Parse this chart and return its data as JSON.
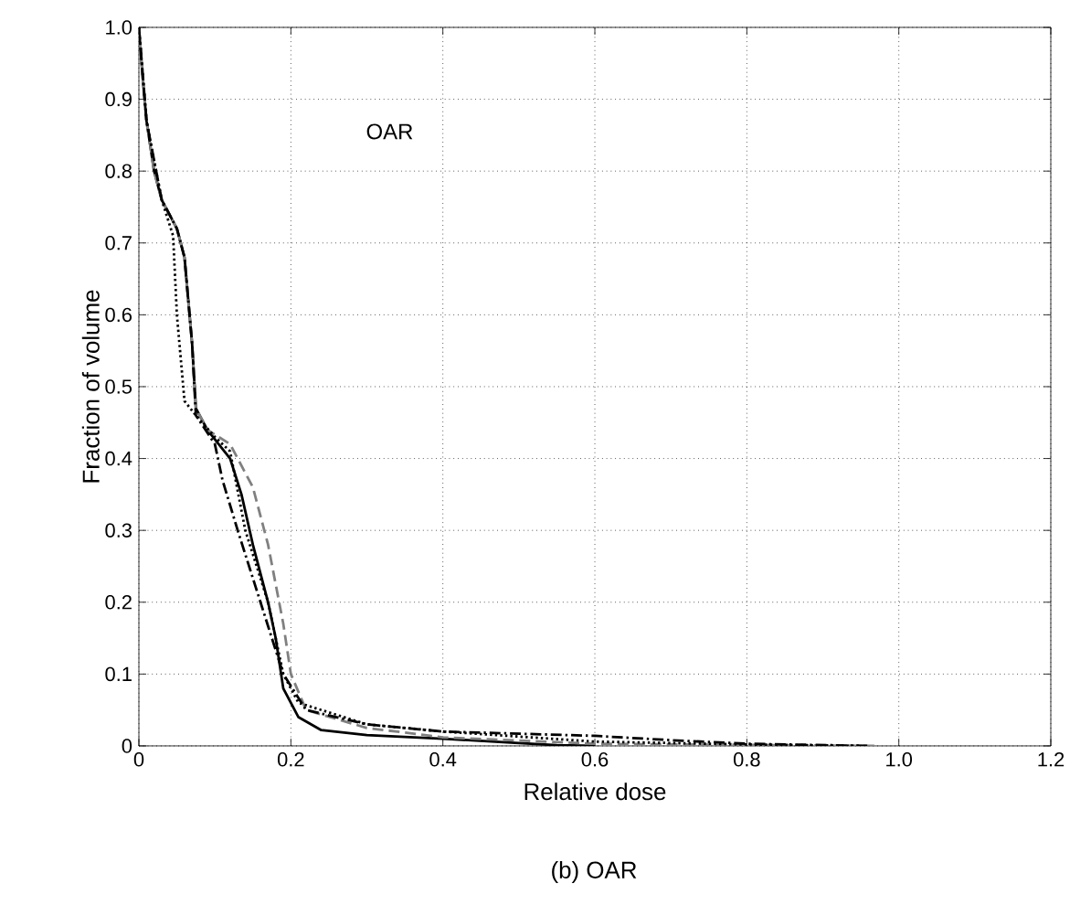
{
  "chart_data": {
    "type": "line",
    "xlabel": "Relative dose",
    "ylabel": "Fraction of volume",
    "annotations": [
      "OAR",
      "(b) OAR"
    ],
    "xlim": [
      0,
      1.2
    ],
    "ylim": [
      0,
      1.0
    ],
    "xticks": [
      0,
      0.2,
      0.4,
      0.6,
      0.8,
      {
        "value": 1.0,
        "label": "1.0"
      },
      1.2
    ],
    "yticks": [
      0,
      0.1,
      0.2,
      0.3,
      0.4,
      0.5,
      0.6,
      0.7,
      0.8,
      0.9,
      {
        "value": 1.0,
        "label": "1.0"
      }
    ],
    "grid": true,
    "series": [
      {
        "color": "#000000",
        "line_style": "solid",
        "x": [
          0,
          0.005,
          0.01,
          0.02,
          0.03,
          0.05,
          0.06,
          0.07,
          0.075,
          0.09,
          0.12,
          0.135,
          0.15,
          0.17,
          0.18,
          0.19,
          0.21,
          0.24,
          0.3,
          0.4,
          0.5,
          0.55,
          0.6
        ],
        "values": [
          1.0,
          0.93,
          0.87,
          0.8,
          0.76,
          0.72,
          0.68,
          0.56,
          0.47,
          0.44,
          0.4,
          0.35,
          0.28,
          0.2,
          0.15,
          0.08,
          0.04,
          0.022,
          0.015,
          0.01,
          0.004,
          0.001,
          0
        ]
      },
      {
        "color": "#808080",
        "line_style": "dashed",
        "x": [
          0,
          0.005,
          0.01,
          0.02,
          0.03,
          0.05,
          0.06,
          0.07,
          0.075,
          0.09,
          0.12,
          0.15,
          0.17,
          0.19,
          0.2,
          0.22,
          0.3,
          0.4,
          0.6,
          0.97
        ],
        "values": [
          1.0,
          0.93,
          0.87,
          0.8,
          0.76,
          0.72,
          0.68,
          0.56,
          0.47,
          0.44,
          0.42,
          0.36,
          0.28,
          0.17,
          0.1,
          0.05,
          0.025,
          0.012,
          0.003,
          0
        ]
      },
      {
        "color": "#000000",
        "line_style": "dotted",
        "x": [
          0,
          0.01,
          0.03,
          0.045,
          0.05,
          0.06,
          0.075,
          0.1,
          0.12,
          0.14,
          0.17,
          0.19,
          0.21,
          0.3,
          0.4,
          0.6,
          0.8,
          0.95
        ],
        "values": [
          1.0,
          0.87,
          0.76,
          0.71,
          0.6,
          0.48,
          0.46,
          0.43,
          0.41,
          0.3,
          0.2,
          0.1,
          0.06,
          0.03,
          0.02,
          0.006,
          0.002,
          0
        ]
      },
      {
        "color": "#000000",
        "line_style": "dashdot",
        "x": [
          0,
          0.01,
          0.03,
          0.05,
          0.06,
          0.07,
          0.075,
          0.1,
          0.11,
          0.13,
          0.16,
          0.19,
          0.22,
          0.3,
          0.4,
          0.6,
          0.7,
          0.8,
          0.96
        ],
        "values": [
          1.0,
          0.87,
          0.76,
          0.72,
          0.68,
          0.56,
          0.46,
          0.42,
          0.37,
          0.3,
          0.2,
          0.1,
          0.05,
          0.03,
          0.02,
          0.014,
          0.008,
          0.003,
          0
        ]
      }
    ]
  }
}
